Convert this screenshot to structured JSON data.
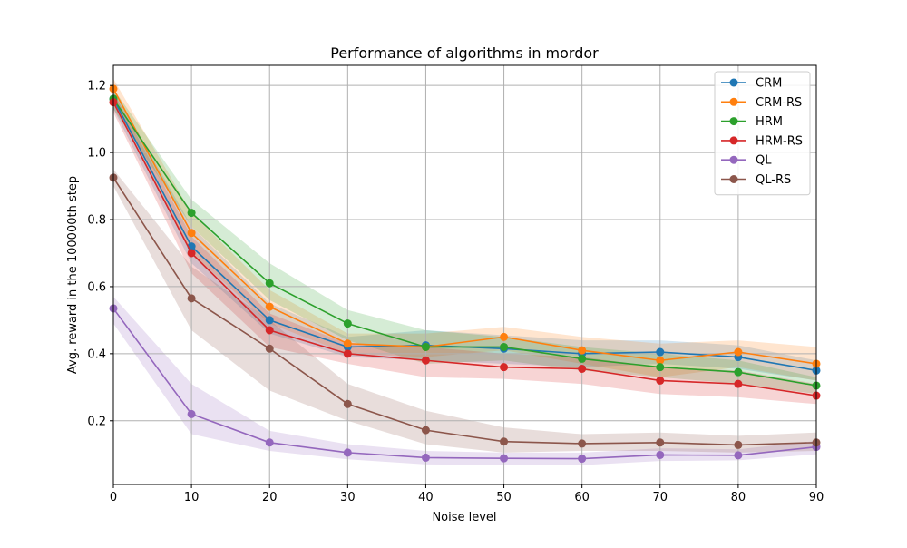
{
  "chart_data": {
    "type": "line",
    "title": "Performance of algorithms in mordor",
    "xlabel": "Noise level",
    "ylabel": "Avg. reward in the 100000th step",
    "x": [
      0,
      10,
      20,
      30,
      40,
      50,
      60,
      70,
      80,
      90
    ],
    "xlim": [
      0,
      90
    ],
    "ylim": [
      0.01,
      1.26
    ],
    "xticks": [
      "0",
      "10",
      "20",
      "30",
      "40",
      "50",
      "60",
      "70",
      "80",
      "90"
    ],
    "yticks": [
      "0.2",
      "0.4",
      "0.6",
      "0.8",
      "1.0",
      "1.2"
    ],
    "grid": true,
    "legend_position": "top-right",
    "series": [
      {
        "name": "CRM",
        "color": "#1f77b4",
        "values": [
          1.16,
          0.72,
          0.5,
          0.42,
          0.425,
          0.415,
          0.4,
          0.405,
          0.39,
          0.35
        ],
        "lower": [
          1.13,
          0.67,
          0.46,
          0.39,
          0.38,
          0.37,
          0.36,
          0.37,
          0.355,
          0.32
        ],
        "upper": [
          1.19,
          0.78,
          0.55,
          0.45,
          0.47,
          0.455,
          0.44,
          0.44,
          0.425,
          0.38
        ]
      },
      {
        "name": "CRM-RS",
        "color": "#ff7f0e",
        "values": [
          1.19,
          0.76,
          0.54,
          0.43,
          0.42,
          0.45,
          0.41,
          0.38,
          0.405,
          0.37
        ],
        "lower": [
          1.16,
          0.7,
          0.49,
          0.4,
          0.39,
          0.41,
          0.37,
          0.33,
          0.36,
          0.32
        ],
        "upper": [
          1.22,
          0.82,
          0.59,
          0.46,
          0.46,
          0.48,
          0.45,
          0.43,
          0.44,
          0.42
        ]
      },
      {
        "name": "HRM",
        "color": "#2ca02c",
        "values": [
          1.16,
          0.82,
          0.61,
          0.49,
          0.42,
          0.42,
          0.385,
          0.36,
          0.345,
          0.305
        ],
        "lower": [
          1.13,
          0.78,
          0.56,
          0.44,
          0.37,
          0.38,
          0.35,
          0.33,
          0.31,
          0.28
        ],
        "upper": [
          1.19,
          0.86,
          0.67,
          0.53,
          0.47,
          0.45,
          0.42,
          0.4,
          0.38,
          0.33
        ]
      },
      {
        "name": "HRM-RS",
        "color": "#d62728",
        "values": [
          1.15,
          0.7,
          0.47,
          0.4,
          0.38,
          0.36,
          0.355,
          0.32,
          0.31,
          0.275
        ],
        "lower": [
          1.12,
          0.64,
          0.42,
          0.37,
          0.33,
          0.325,
          0.31,
          0.28,
          0.27,
          0.25
        ],
        "upper": [
          1.18,
          0.75,
          0.52,
          0.43,
          0.42,
          0.4,
          0.39,
          0.36,
          0.35,
          0.31
        ]
      },
      {
        "name": "QL",
        "color": "#9467bd",
        "values": [
          0.535,
          0.22,
          0.135,
          0.105,
          0.09,
          0.088,
          0.087,
          0.098,
          0.097,
          0.122
        ],
        "lower": [
          0.49,
          0.16,
          0.11,
          0.085,
          0.07,
          0.068,
          0.068,
          0.08,
          0.082,
          0.1
        ],
        "upper": [
          0.57,
          0.31,
          0.17,
          0.13,
          0.11,
          0.105,
          0.105,
          0.118,
          0.115,
          0.14
        ]
      },
      {
        "name": "QL-RS",
        "color": "#8c564b",
        "values": [
          0.925,
          0.565,
          0.415,
          0.25,
          0.172,
          0.138,
          0.132,
          0.135,
          0.128,
          0.135
        ],
        "lower": [
          0.9,
          0.47,
          0.29,
          0.2,
          0.13,
          0.105,
          0.11,
          0.11,
          0.105,
          0.11
        ],
        "upper": [
          0.95,
          0.66,
          0.5,
          0.31,
          0.23,
          0.18,
          0.16,
          0.165,
          0.155,
          0.165
        ]
      }
    ]
  }
}
